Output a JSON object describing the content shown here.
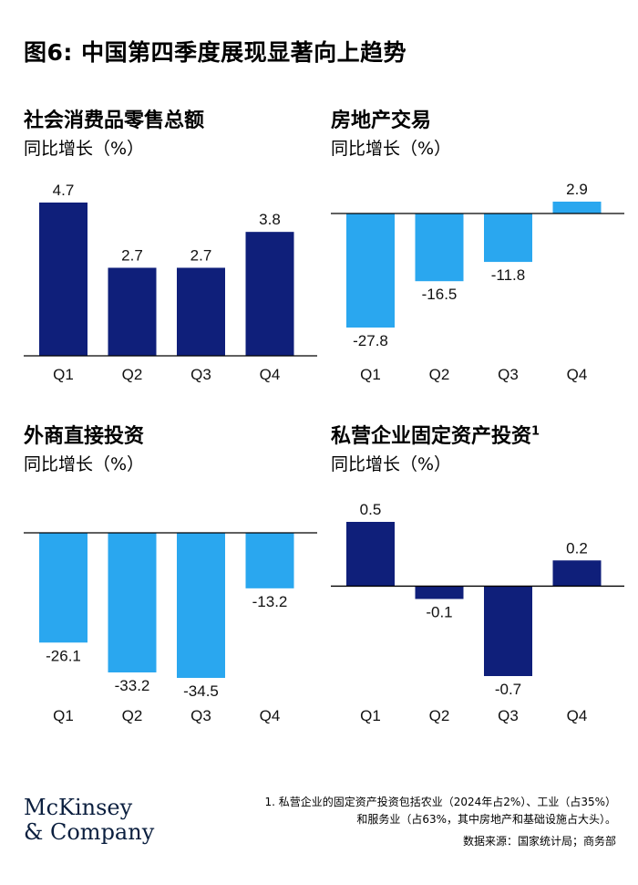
{
  "title": "图6: 中国第四季度展现显著向上趋势",
  "colors": {
    "dark": "#0f1f7a",
    "light": "#2aa7ef",
    "axis": "#000000"
  },
  "chart_data": [
    {
      "type": "bar",
      "title": "社会消费品零售总额",
      "subtitle": "同比增长（%）",
      "categories": [
        "Q1",
        "Q2",
        "Q3",
        "Q4"
      ],
      "values": [
        4.7,
        2.7,
        2.7,
        3.8
      ],
      "value_labels": [
        "4.7",
        "2.7",
        "2.7",
        "3.8"
      ],
      "color": "dark",
      "ylim": [
        0,
        4.7
      ]
    },
    {
      "type": "bar",
      "title": "房地产交易",
      "subtitle": "同比增长（%）",
      "categories": [
        "Q1",
        "Q2",
        "Q3",
        "Q4"
      ],
      "values": [
        -27.8,
        -16.5,
        -11.8,
        2.9
      ],
      "value_labels": [
        "-27.8",
        "-16.5",
        "-11.8",
        "2.9"
      ],
      "color": "light",
      "ylim": [
        -27.8,
        2.9
      ]
    },
    {
      "type": "bar",
      "title": "外商直接投资",
      "subtitle": "同比增长（%）",
      "categories": [
        "Q1",
        "Q2",
        "Q3",
        "Q4"
      ],
      "values": [
        -26.1,
        -33.2,
        -34.5,
        -13.2
      ],
      "value_labels": [
        "-26.1",
        "-33.2",
        "-34.5",
        "-13.2"
      ],
      "color": "light",
      "ylim": [
        -34.5,
        0
      ]
    },
    {
      "type": "bar",
      "title": "私营企业固定资产投资",
      "title_sup": "1",
      "subtitle": "同比增长（%）",
      "categories": [
        "Q1",
        "Q2",
        "Q3",
        "Q4"
      ],
      "values": [
        0.5,
        -0.1,
        -0.7,
        0.2
      ],
      "value_labels": [
        "0.5",
        "-0.1",
        "-0.7",
        "0.2"
      ],
      "color": "dark",
      "ylim": [
        -0.7,
        0.5
      ]
    }
  ],
  "footnote": {
    "line1": "1.    私营企业的固定资产投资包括农业（2024年占2%）、工业（占35%）",
    "line2": "和服务业（占63%，其中房地产和基础设施占大头）。",
    "source": "数据来源：国家统计局；商务部"
  },
  "logo": {
    "line1": "McKinsey",
    "line2": "& Company"
  }
}
